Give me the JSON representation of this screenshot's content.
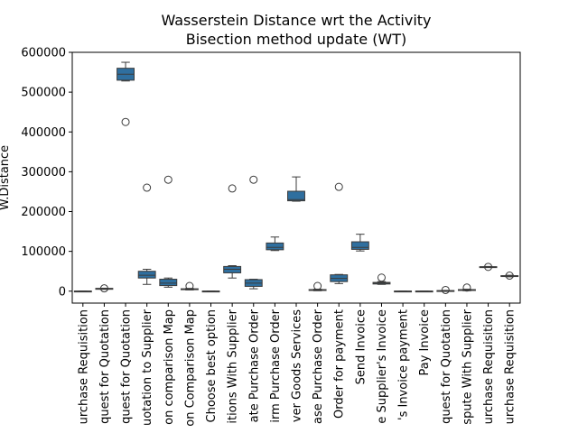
{
  "chart_data": {
    "type": "box",
    "title_line1": "Wasserstein Distance wrt the Activity",
    "title_line2": "Bisection method update (WT)",
    "xlabel": "",
    "ylabel": "W.Distance",
    "ylim": [
      -30000,
      600000
    ],
    "yticks": [
      0,
      100000,
      200000,
      300000,
      400000,
      500000,
      600000
    ],
    "ytick_labels": [
      "0",
      "100000",
      "200000",
      "300000",
      "400000",
      "500000",
      "600000"
    ],
    "box_color": "#2f6f9f",
    "categories": [
      "Create Purchase Requisition",
      "Create Request for Quotation",
      "Analyze Request for Quotation",
      "Send Request for Quotation to Supplier",
      "Create Quotation comparison Map",
      "Analyze Quotation Comparison Map",
      "Choose best option",
      "Settle Conditions With Supplier",
      "Create Purchase Order",
      "Confirm Purchase Order",
      "Deliver Goods Services",
      "Release Purchase Order",
      "Approve Purchase Order for payment",
      "Send Invoice",
      "Release Supplier's Invoice",
      "Authorize Supplier's Invoice payment",
      "Pay Invoice",
      "Amend Request for Quotation",
      "Settle Dispute With Supplier",
      "Amend Purchase Requisition",
      "Approve Purchase Requisition"
    ],
    "tick_labels": [
      "urchase Requisition",
      "quest for Quotation",
      "quest for Quotation",
      "uotation to Supplier",
      "on comparison Map",
      "on Comparison Map",
      "Choose best option",
      "itions With Supplier",
      "ate Purchase Order",
      "irm Purchase Order",
      "ver Goods Services",
      "ase Purchase Order",
      "Order for payment",
      "Send Invoice",
      "e Supplier's Invoice",
      "'s Invoice payment",
      "Pay Invoice",
      "quest for Quotation",
      "spute With Supplier",
      "urchase Requisition",
      "urchase Requisition"
    ],
    "boxes": [
      {
        "whislo": -500,
        "q1": -300,
        "med": 0,
        "q3": 300,
        "whishi": 500,
        "fliers": []
      },
      {
        "whislo": 4500,
        "q1": 5500,
        "med": 6500,
        "q3": 7000,
        "whishi": 7500,
        "fliers": [
          7000
        ]
      },
      {
        "whislo": 528000,
        "q1": 530000,
        "med": 545000,
        "q3": 560000,
        "whishi": 575000,
        "fliers": [
          425000
        ]
      },
      {
        "whislo": 17000,
        "q1": 33000,
        "med": 40000,
        "q3": 50000,
        "whishi": 55000,
        "fliers": [
          260000
        ]
      },
      {
        "whislo": 10000,
        "q1": 14000,
        "med": 20000,
        "q3": 30000,
        "whishi": 33000,
        "fliers": [
          280000
        ]
      },
      {
        "whislo": 3000,
        "q1": 4000,
        "med": 5000,
        "q3": 6000,
        "whishi": 7000,
        "fliers": [
          13000
        ]
      },
      {
        "whislo": -500,
        "q1": -300,
        "med": 0,
        "q3": 300,
        "whishi": 500,
        "fliers": []
      },
      {
        "whislo": 33000,
        "q1": 46000,
        "med": 55000,
        "q3": 62000,
        "whishi": 64000,
        "fliers": [
          258000
        ]
      },
      {
        "whislo": 6000,
        "q1": 12000,
        "med": 20000,
        "q3": 29000,
        "whishi": 30000,
        "fliers": [
          280000
        ]
      },
      {
        "whislo": 102000,
        "q1": 104000,
        "med": 110000,
        "q3": 121000,
        "whishi": 136000,
        "fliers": []
      },
      {
        "whislo": 226000,
        "q1": 227000,
        "med": 230000,
        "q3": 251000,
        "whishi": 287000,
        "fliers": []
      },
      {
        "whislo": 1000,
        "q1": 2000,
        "med": 3000,
        "q3": 4000,
        "whishi": 5000,
        "fliers": [
          13000
        ]
      },
      {
        "whislo": 19000,
        "q1": 24000,
        "med": 32000,
        "q3": 41000,
        "whishi": 42000,
        "fliers": [
          262000
        ]
      },
      {
        "whislo": 101000,
        "q1": 105000,
        "med": 110000,
        "q3": 124000,
        "whishi": 143000,
        "fliers": []
      },
      {
        "whislo": 17000,
        "q1": 18000,
        "med": 20000,
        "q3": 22000,
        "whishi": 24000,
        "fliers": [
          34000
        ]
      },
      {
        "whislo": -500,
        "q1": -300,
        "med": 0,
        "q3": 300,
        "whishi": 500,
        "fliers": []
      },
      {
        "whislo": -500,
        "q1": -300,
        "med": 0,
        "q3": 300,
        "whishi": 500,
        "fliers": []
      },
      {
        "whislo": 0,
        "q1": 500,
        "med": 1000,
        "q3": 1500,
        "whishi": 2000,
        "fliers": [
          3000
        ]
      },
      {
        "whislo": 1000,
        "q1": 2000,
        "med": 3000,
        "q3": 4000,
        "whishi": 5000,
        "fliers": [
          9000
        ]
      },
      {
        "whislo": 60000,
        "q1": 60500,
        "med": 61000,
        "q3": 61500,
        "whishi": 62000,
        "fliers": [
          61000
        ]
      },
      {
        "whislo": 36000,
        "q1": 37000,
        "med": 38000,
        "q3": 39000,
        "whishi": 40000,
        "fliers": [
          39000
        ]
      }
    ]
  }
}
